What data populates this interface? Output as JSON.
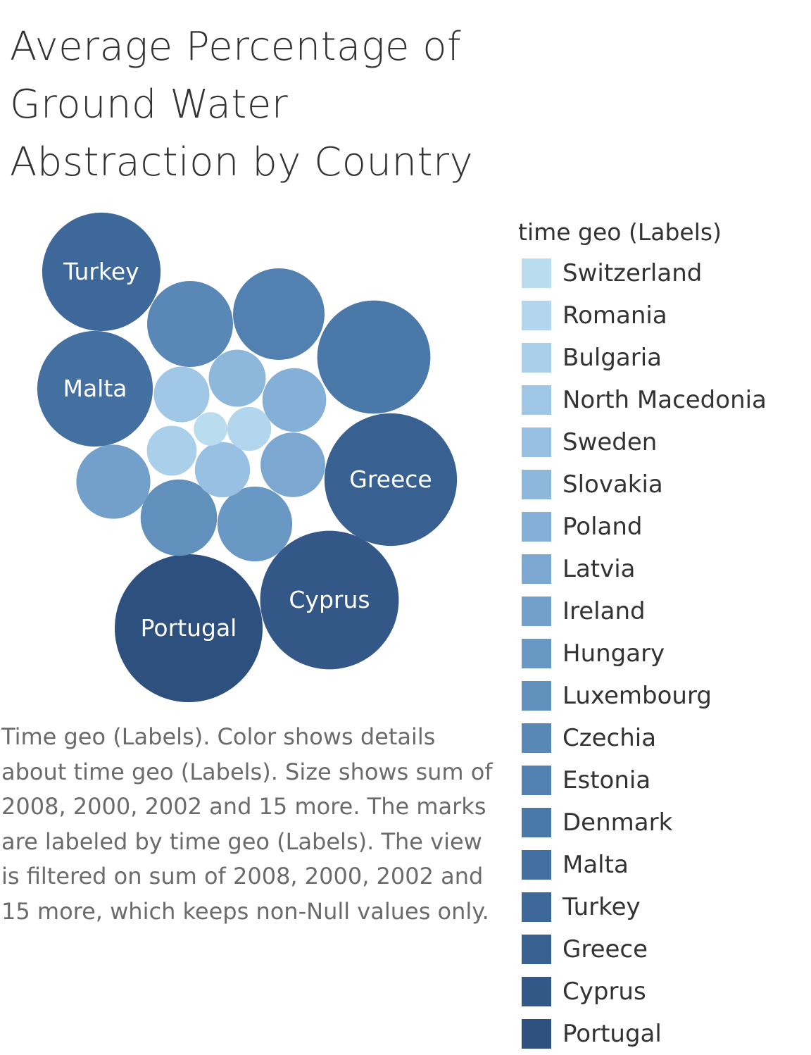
{
  "title": "Average Percentage of Ground Water Abstraction by Country",
  "caption": "Time geo (Labels).  Color shows details about time geo (Labels).  Size shows sum of 2008, 2000, 2002 and 15 more.  The marks are labeled by time geo (Labels).  The view is filtered on sum of 2008, 2000, 2002 and 15 more, which keeps non-Null values only.",
  "legend": {
    "title": "time geo (Labels)"
  },
  "chart_data": {
    "type": "bubble",
    "title": "Average Percentage of Ground Water Abstraction by Country",
    "color_legend_title": "time geo (Labels)",
    "size_measure": "sum of 2008, 2000, 2002 and 15 more",
    "series": [
      {
        "name": "Switzerland",
        "size": 22,
        "color": "#b9dcef",
        "labeled": false
      },
      {
        "name": "Romania",
        "size": 38,
        "color": "#b2d6ee",
        "labeled": false
      },
      {
        "name": "Bulgaria",
        "size": 49,
        "color": "#a9cfea",
        "labeled": false
      },
      {
        "name": "North Macedonia",
        "size": 61,
        "color": "#a0c7e6",
        "labeled": false
      },
      {
        "name": "Sweden",
        "size": 60,
        "color": "#97c0e2",
        "labeled": false
      },
      {
        "name": "Slovakia",
        "size": 64,
        "color": "#8db8dc",
        "labeled": false
      },
      {
        "name": "Poland",
        "size": 80,
        "color": "#84afd6",
        "labeled": false
      },
      {
        "name": "Latvia",
        "size": 82,
        "color": "#7ba7d0",
        "labeled": false
      },
      {
        "name": "Ireland",
        "size": 108,
        "color": "#72a0ca",
        "labeled": false
      },
      {
        "name": "Hungary",
        "size": 110,
        "color": "#6a98c4",
        "labeled": false
      },
      {
        "name": "Luxembourg",
        "size": 115,
        "color": "#6290bd",
        "labeled": false
      },
      {
        "name": "Czechia",
        "size": 145,
        "color": "#5a88b6",
        "labeled": false
      },
      {
        "name": "Estonia",
        "size": 165,
        "color": "#5280b0",
        "labeled": false
      },
      {
        "name": "Denmark",
        "size": 252,
        "color": "#4a78a9",
        "labeled": false
      },
      {
        "name": "Malta",
        "size": 263,
        "color": "#4470a1",
        "labeled": true
      },
      {
        "name": "Turkey",
        "size": 276,
        "color": "#3e6899",
        "labeled": true
      },
      {
        "name": "Greece",
        "size": 345,
        "color": "#386090",
        "labeled": true
      },
      {
        "name": "Cyprus",
        "size": 378,
        "color": "#335887",
        "labeled": true
      },
      {
        "name": "Portugal",
        "size": 430,
        "color": "#2d507e",
        "labeled": true
      }
    ]
  }
}
